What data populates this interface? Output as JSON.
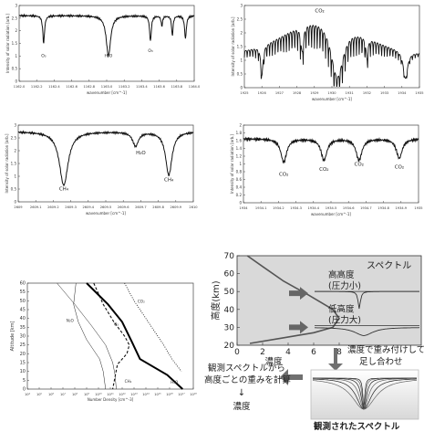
{
  "chart_data": [
    {
      "id": "p1",
      "type": "line",
      "ylabel": "Intensity of solar radiation [arb.]",
      "xlabel": "wavenumber [cm^-1]",
      "xticks": [
        "1162.0",
        "1162.2",
        "1162.4",
        "1162.6",
        "1162.8",
        "1163.0",
        "1163.2",
        "1163.4",
        "1163.6",
        "1163.8",
        "1164.0"
      ],
      "yticks": [
        "0",
        "0.5",
        "1",
        "1.5",
        "2",
        "2.5",
        "3"
      ],
      "xlim": [
        1162.0,
        1164.0
      ],
      "ylim": [
        0,
        3
      ],
      "baseline": 2.6,
      "lines": [
        {
          "x": 1162.28,
          "depth": 1.1,
          "width": 0.012
        },
        {
          "x": 1163.02,
          "depth": 1.6,
          "width": 0.03
        },
        {
          "x": 1163.5,
          "depth": 1.0,
          "width": 0.012
        },
        {
          "x": 1163.63,
          "depth": 0.4,
          "width": 0.01
        },
        {
          "x": 1163.75,
          "depth": 0.8,
          "width": 0.01
        },
        {
          "x": 1163.9,
          "depth": 0.9,
          "width": 0.012
        }
      ],
      "annotations": [
        {
          "text": "O₃",
          "x": 1162.28,
          "y": 0.95
        },
        {
          "text": "H₂O",
          "x": 1163.02,
          "y": 0.95
        },
        {
          "text": "O₃",
          "x": 1163.5,
          "y": 1.15
        }
      ]
    },
    {
      "id": "p2",
      "type": "line",
      "ylabel": "Intensity of solar radiation [arb.]",
      "xlabel": "wavenumber [cm^-1]",
      "xticks": [
        "1925",
        "1926",
        "1927",
        "1928",
        "1929",
        "1930",
        "1931",
        "1932",
        "1933",
        "1934",
        "1935"
      ],
      "yticks": [
        "0",
        "0.5",
        "1",
        "1.5",
        "2",
        "2.5",
        "3"
      ],
      "xlim": [
        1925,
        1935
      ],
      "ylim": [
        0,
        3
      ],
      "annotations": [
        {
          "text": "CO₂",
          "x": 1929.3,
          "y": 2.75
        }
      ]
    },
    {
      "id": "p3",
      "type": "line",
      "ylabel": "Intensity of solar radiation [arb.]",
      "xlabel": "wavenumber [cm^-1]",
      "xticks": [
        "2609",
        "2609.1",
        "2609.2",
        "2609.3",
        "2609.4",
        "2609.5",
        "2609.6",
        "2609.7",
        "2609.8",
        "2609.9",
        "2610"
      ],
      "yticks": [
        "0",
        "0.5",
        "1",
        "1.5",
        "2",
        "2.5",
        "3"
      ],
      "xlim": [
        2609.0,
        2610.0
      ],
      "ylim": [
        0,
        3
      ],
      "baseline": 2.75,
      "lines": [
        {
          "x": 2609.26,
          "depth": 2.1,
          "width": 0.03
        },
        {
          "x": 2609.67,
          "depth": 0.55,
          "width": 0.02
        },
        {
          "x": 2609.86,
          "depth": 1.7,
          "width": 0.022
        }
      ],
      "annotations": [
        {
          "text": "CH₄",
          "x": 2609.26,
          "y": 0.45
        },
        {
          "text": "H₂O",
          "x": 2609.7,
          "y": 1.85
        },
        {
          "text": "CH₄",
          "x": 2609.86,
          "y": 0.8
        }
      ]
    },
    {
      "id": "p4",
      "type": "line",
      "ylabel": "Intensity of solar radiation [arb.]",
      "xlabel": "wavenumber [cm^-1]",
      "xticks": [
        "1934",
        "1934.1",
        "1934.2",
        "1934.3",
        "1934.4",
        "1934.5",
        "1934.6",
        "1934.7",
        "1934.8",
        "1934.9",
        "1935"
      ],
      "yticks": [
        "0",
        "0.2",
        "0.4",
        "0.6",
        "0.8",
        "1",
        "1.2",
        "1.4",
        "1.6",
        "1.8",
        "2"
      ],
      "xlim": [
        1934.0,
        1935.0
      ],
      "ylim": [
        0,
        2
      ],
      "baseline": 1.65,
      "lines": [
        {
          "x": 1934.23,
          "depth": 0.6,
          "width": 0.02
        },
        {
          "x": 1934.46,
          "depth": 0.55,
          "width": 0.02
        },
        {
          "x": 1934.66,
          "depth": 0.55,
          "width": 0.02
        },
        {
          "x": 1934.89,
          "depth": 0.5,
          "width": 0.02
        }
      ],
      "annotations": [
        {
          "text": "CO₂",
          "x": 1934.23,
          "y": 0.7
        },
        {
          "text": "CO₂",
          "x": 1934.46,
          "y": 0.82
        },
        {
          "text": "CO₂",
          "x": 1934.66,
          "y": 0.95
        },
        {
          "text": "CO₂",
          "x": 1934.89,
          "y": 0.88
        }
      ]
    },
    {
      "id": "p5",
      "type": "line",
      "ylabel": "Altitude [km]",
      "xlabel": "Number Density [cm^-3]",
      "xscale": "log",
      "xticks": [
        "10⁴",
        "10⁵",
        "10⁶",
        "10⁷",
        "10⁸",
        "10⁹",
        "10¹⁰",
        "10¹¹",
        "10¹²",
        "10¹³",
        "10¹⁴",
        "10¹⁵",
        "10¹⁶",
        "10¹⁷",
        "10¹⁸"
      ],
      "yticks": [
        "0",
        "5",
        "10",
        "15",
        "20",
        "25",
        "30",
        "35",
        "40",
        "45",
        "50",
        "55",
        "60"
      ],
      "xlim": [
        4,
        18
      ],
      "ylim": [
        0,
        60
      ],
      "series": [
        {
          "name": "N₂O",
          "style": "thin",
          "x": [
            8.1,
            7.9,
            8.3,
            9.0,
            9.6,
            10.1,
            10.4,
            10.6
          ],
          "y": [
            60,
            48,
            38,
            28,
            22,
            17,
            10,
            0
          ]
        },
        {
          "name": "O₃",
          "style": "dashed",
          "x": [
            9.6,
            10.4,
            11.3,
            12.2,
            12.6,
            12.4,
            11.6,
            11.2
          ],
          "y": [
            60,
            48,
            38,
            30,
            25,
            20,
            14,
            0
          ]
        },
        {
          "name": "CO₂",
          "style": "dotted",
          "x": [
            12.2,
            13.0,
            14.0,
            14.7,
            15.5,
            16.2,
            17.0
          ],
          "y": [
            60,
            50,
            40,
            33,
            25,
            17,
            10
          ]
        },
        {
          "name": "H₂O",
          "style": "bold",
          "x": [
            9.0,
            10.8,
            12.0,
            12.8,
            13.5,
            15.8,
            17.1
          ],
          "y": [
            60,
            48,
            38,
            27,
            17,
            8,
            0
          ]
        },
        {
          "name": "CH₄",
          "style": "thin",
          "x": [
            6.5,
            8.0,
            9.4,
            10.6,
            11.2,
            11.4,
            11.5
          ],
          "y": [
            60,
            48,
            36,
            25,
            15,
            8,
            0
          ]
        }
      ],
      "labels": [
        {
          "text": "N₂O",
          "x": 7.6,
          "y": 38
        },
        {
          "text": "O₃",
          "x": 11.5,
          "y": 36
        },
        {
          "text": "CO₂",
          "x": 13.6,
          "y": 49
        },
        {
          "text": "CH₄",
          "x": 12.5,
          "y": 3.5
        },
        {
          "text": "H₂O",
          "x": 16.4,
          "y": 3
        }
      ]
    },
    {
      "id": "p6",
      "type": "line",
      "title": "スペクトル",
      "ylabel": "高度(km)",
      "xlabel": "濃度",
      "xticks": [
        "0",
        "2",
        "4",
        "6",
        "8"
      ],
      "yticks": [
        "20",
        "30",
        "40",
        "50",
        "60",
        "70"
      ],
      "xlim": [
        0,
        8
      ],
      "ylim": [
        20,
        70
      ],
      "profile": {
        "x": [
          0.8,
          2.0,
          3.6,
          5.6,
          7.5,
          8.0,
          7.5,
          6.0,
          3.5,
          1.0
        ],
        "y": [
          70,
          64,
          56,
          48,
          40,
          35,
          30,
          27,
          24,
          21
        ]
      },
      "levels": [
        {
          "label_top": "高高度",
          "label_bottom": "(圧力小)",
          "alt": 49
        },
        {
          "label_top": "低高度",
          "label_bottom": "(圧力大)",
          "alt": 30
        }
      ]
    }
  ],
  "flow": {
    "weighting_text_1": "濃度で重み付けして",
    "weighting_text_2": "足し合わせ",
    "retrieval_text_1": "観測スペクトルから",
    "retrieval_text_2": "高度ごとの重みを計算",
    "retrieval_arrow": "↓",
    "retrieval_result": "濃度",
    "observed_caption": "観測されたスペクトル"
  }
}
